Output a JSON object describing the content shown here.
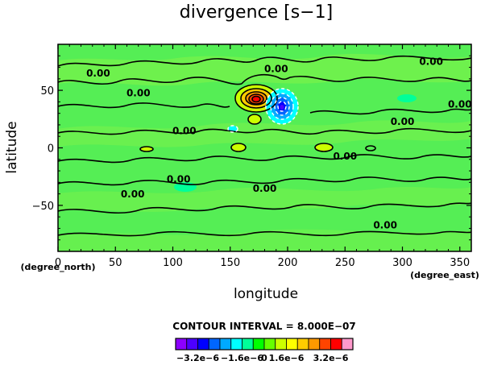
{
  "chart_data": {
    "type": "heatmap",
    "title": "divergence [s−1]",
    "xlabel": "longitude",
    "ylabel": "latitude",
    "x_unit": "(degree_east)",
    "y_unit": "(degree_north)",
    "xlim": [
      0,
      360
    ],
    "ylim": [
      -90,
      90
    ],
    "x_ticks": [
      0,
      50,
      100,
      150,
      200,
      250,
      300,
      350
    ],
    "y_ticks": [
      50,
      0,
      -50
    ],
    "contour_interval_text": "CONTOUR INTERVAL = 8.000E−07",
    "contour_labels": [
      {
        "text": "0.00",
        "lon": 35,
        "lat": 62
      },
      {
        "text": "0.00",
        "lon": 70,
        "lat": 45
      },
      {
        "text": "0.00",
        "lon": 190,
        "lat": 66
      },
      {
        "text": "0.00",
        "lon": 325,
        "lat": 72
      },
      {
        "text": "0.00",
        "lon": 350,
        "lat": 35
      },
      {
        "text": "0.00",
        "lon": 300,
        "lat": 20
      },
      {
        "text": "0.00",
        "lon": 110,
        "lat": 12
      },
      {
        "text": "0.00",
        "lon": 250,
        "lat": -10
      },
      {
        "text": "0.00",
        "lon": 105,
        "lat": -30
      },
      {
        "text": "0.00",
        "lon": 180,
        "lat": -38
      },
      {
        "text": "0.00",
        "lon": 65,
        "lat": -43
      },
      {
        "text": "0.00",
        "lon": 285,
        "lat": -70
      }
    ],
    "features": [
      {
        "kind": "max",
        "lon": 170,
        "lat": 38,
        "value": 3.2e-06
      },
      {
        "kind": "min",
        "lon": 193,
        "lat": 32,
        "value": -2.4e-06
      },
      {
        "kind": "max",
        "lon": 155,
        "lat": 20,
        "value": 8e-07
      },
      {
        "kind": "min",
        "lon": 148,
        "lat": 15,
        "value": -8e-07
      },
      {
        "kind": "max",
        "lon": 160,
        "lat": 0,
        "value": 8e-07
      },
      {
        "kind": "max",
        "lon": 232,
        "lat": 0,
        "value": 8e-07
      },
      {
        "kind": "max",
        "lon": 78,
        "lat": -2,
        "value": 8e-07
      }
    ],
    "colorbar": {
      "colors": [
        "#8c00ff",
        "#4c00ff",
        "#0000ff",
        "#0066ff",
        "#00aaff",
        "#00ffff",
        "#00ff99",
        "#00ff00",
        "#66ff00",
        "#ccff00",
        "#ffff00",
        "#ffcc00",
        "#ff9900",
        "#ff4400",
        "#ff0000",
        "#ff99cc"
      ],
      "tick_labels": [
        "−3.2e−6",
        "−1.6e−6",
        "0",
        "1.6e−6",
        "3.2e−6"
      ]
    }
  }
}
